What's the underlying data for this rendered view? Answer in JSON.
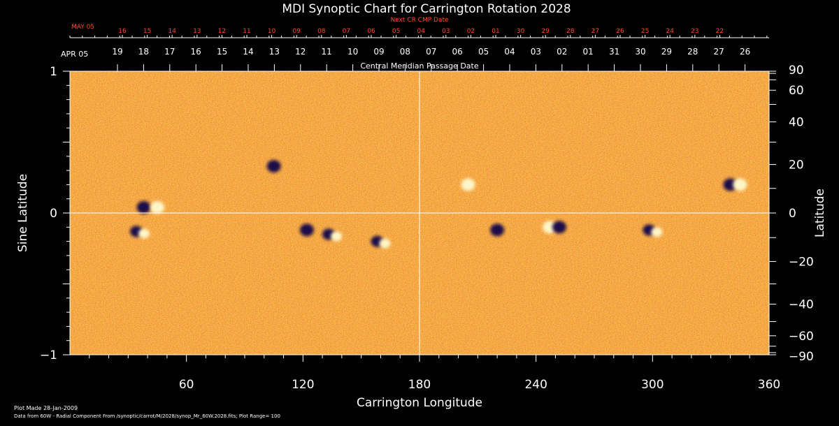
{
  "chart_data": {
    "type": "heatmap",
    "title": "MDI Synoptic Chart for Carrington Rotation 2028",
    "xlabel": "Carrington Longitude",
    "ylabel_left": "Sine Latitude",
    "ylabel_right": "Latitude",
    "xlim": [
      0,
      360
    ],
    "ylim": [
      -1,
      1
    ],
    "x_ticks": [
      "60",
      "120",
      "180",
      "240",
      "300",
      "360"
    ],
    "x_tick_values": [
      60,
      120,
      180,
      240,
      300,
      360
    ],
    "y_left_ticks": [
      "1",
      "0",
      "−1"
    ],
    "y_left_tick_values": [
      1,
      0,
      -1
    ],
    "y_right_ticks": [
      "90",
      "60",
      "40",
      "20",
      "0",
      "−20",
      "−40",
      "−60",
      "−90"
    ],
    "y_right_tick_values": [
      90,
      60,
      40,
      20,
      0,
      -20,
      -40,
      -60,
      -90
    ],
    "grid_lines": {
      "longitude": [
        180
      ],
      "sine_latitude": [
        0
      ]
    },
    "next_cr_axis": {
      "label": "Next CR CMP Date",
      "month_label": "MAY 05",
      "dates": [
        "16",
        "15",
        "14",
        "13",
        "12",
        "11",
        "10",
        "09",
        "08",
        "07",
        "06",
        "05",
        "04",
        "03",
        "02",
        "01",
        "30",
        "29",
        "28",
        "27",
        "26",
        "25",
        "24",
        "23",
        "22"
      ]
    },
    "cmp_axis": {
      "label": "Central Meridian Passage Date",
      "month_label": "APR 05",
      "dates": [
        "19",
        "18",
        "17",
        "16",
        "15",
        "14",
        "13",
        "12",
        "11",
        "10",
        "09",
        "08",
        "07",
        "06",
        "05",
        "04",
        "03",
        "02",
        "01",
        "31",
        "30",
        "29",
        "28",
        "27",
        "26"
      ]
    },
    "colors": {
      "background_field": "#e25d12",
      "positive": "#fff6c8",
      "negative": "#1a0f4a",
      "axis_red": "#ff4a26"
    },
    "active_regions": [
      {
        "lon": 38,
        "sinlat": 0.04,
        "polarity": "negative"
      },
      {
        "lon": 45,
        "sinlat": 0.04,
        "polarity": "positive"
      },
      {
        "lon": 36,
        "sinlat": -0.13,
        "polarity": "mixed"
      },
      {
        "lon": 122,
        "sinlat": -0.12,
        "polarity": "negative"
      },
      {
        "lon": 135,
        "sinlat": -0.15,
        "polarity": "mixed"
      },
      {
        "lon": 160,
        "sinlat": -0.2,
        "polarity": "mixed"
      },
      {
        "lon": 105,
        "sinlat": 0.33,
        "polarity": "negative"
      },
      {
        "lon": 205,
        "sinlat": 0.2,
        "polarity": "positive"
      },
      {
        "lon": 220,
        "sinlat": -0.12,
        "polarity": "negative"
      },
      {
        "lon": 247,
        "sinlat": -0.1,
        "polarity": "positive"
      },
      {
        "lon": 252,
        "sinlat": -0.1,
        "polarity": "negative"
      },
      {
        "lon": 340,
        "sinlat": 0.2,
        "polarity": "negative"
      },
      {
        "lon": 345,
        "sinlat": 0.2,
        "polarity": "positive"
      },
      {
        "lon": 300,
        "sinlat": -0.12,
        "polarity": "mixed"
      }
    ]
  },
  "footer": {
    "plot_made": "Plot Made 28-Jan-2009",
    "data_source": "Data from 60W - Radial Component From /synoptic/carrot/M/2028/synop_Mr_60W.2028.fits; Plot Range= 100"
  }
}
